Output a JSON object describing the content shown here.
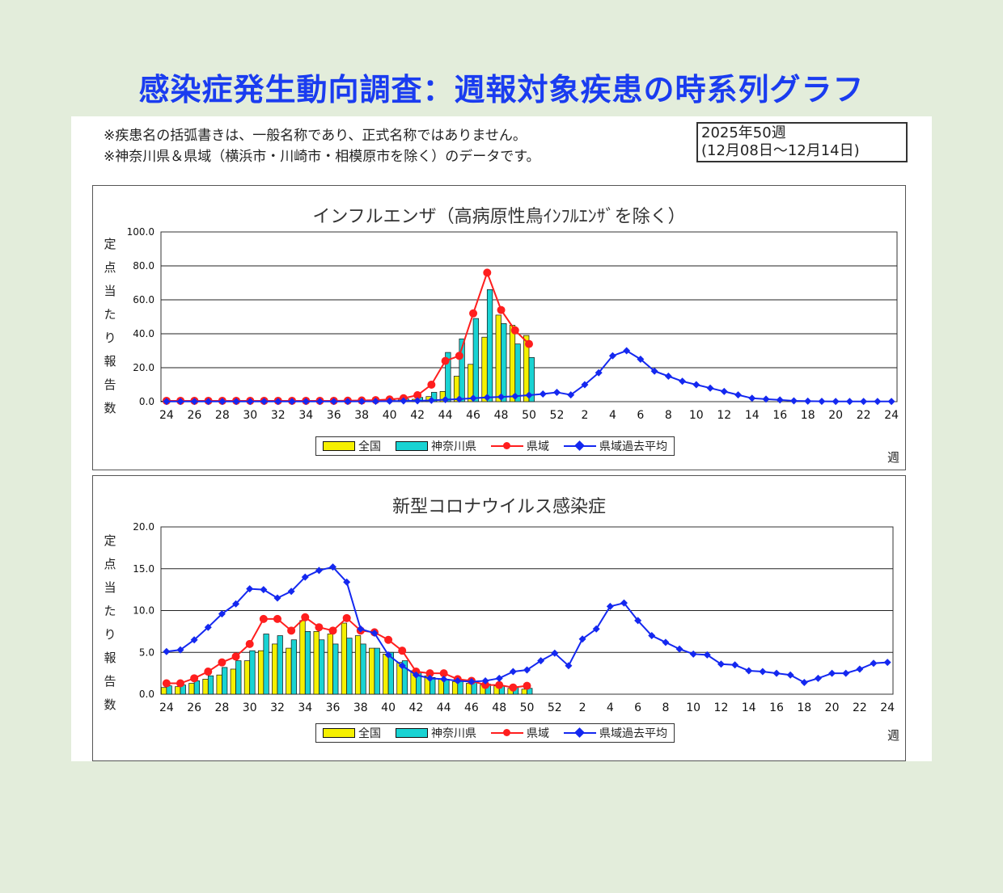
{
  "page": {
    "title": "感染症発生動向調査：週報対象疾患の時系列グラフ",
    "note1": "※疾患名の括弧書きは、一般名称であり、正式名称ではありません。",
    "note2": "※神奈川県＆県域（横浜市・川崎市・相模原市を除く）のデータです。",
    "period_line1": "2025年50週",
    "period_line2": "(12月08日～12月14日)",
    "background_color": "#e3eddb",
    "title_color": "#1a3cf0"
  },
  "legend": {
    "national": "全国",
    "kanagawa": "神奈川県",
    "prefarea": "県域",
    "pastavg": "県域過去平均"
  },
  "colors": {
    "national": "#f5f000",
    "kanagawa": "#19d3d3",
    "prefarea": "#ff1e1e",
    "pastavg": "#1428f0"
  },
  "chart_data": [
    {
      "type": "bar",
      "title": "インフルエンザ（高病原性鳥ｲﾝﾌﾙｴﾝｻﾞを除く）",
      "ylabel": "定点当たり報告数",
      "xlabel": "週",
      "ylim": [
        0,
        100
      ],
      "yticks": [
        "100.0",
        "80.0",
        "60.0",
        "40.0",
        "20.0",
        "0.0"
      ],
      "grid": true,
      "legend_position": "bottom",
      "xticks": [
        "24",
        "26",
        "28",
        "30",
        "32",
        "34",
        "36",
        "38",
        "40",
        "42",
        "44",
        "46",
        "48",
        "50",
        "52",
        "2",
        "4",
        "6",
        "8",
        "10",
        "12",
        "14",
        "16",
        "18",
        "20",
        "22",
        "24"
      ],
      "weeks": [
        "24",
        "25",
        "26",
        "27",
        "28",
        "29",
        "30",
        "31",
        "32",
        "33",
        "34",
        "35",
        "36",
        "37",
        "38",
        "39",
        "40",
        "41",
        "42",
        "43",
        "44",
        "45",
        "46",
        "47",
        "48",
        "49",
        "50",
        "51",
        "52",
        "1",
        "2",
        "3",
        "4",
        "5",
        "6",
        "7",
        "8",
        "9",
        "10",
        "11",
        "12",
        "13",
        "14",
        "15",
        "16",
        "17",
        "18",
        "19",
        "20",
        "21",
        "22",
        "23",
        "24"
      ],
      "series": [
        {
          "name": "全国",
          "kind": "bar",
          "values": [
            0.3,
            0.3,
            0.3,
            0.3,
            0.3,
            0.3,
            0.3,
            0.3,
            0.3,
            0.3,
            0.3,
            0.3,
            0.4,
            0.4,
            0.5,
            0.6,
            0.8,
            1.0,
            1.4,
            3.0,
            6.0,
            15.0,
            22.0,
            38.0,
            51.0,
            45.0,
            39.0
          ]
        },
        {
          "name": "神奈川県",
          "kind": "bar",
          "values": [
            0.5,
            0.5,
            0.5,
            0.5,
            0.5,
            0.5,
            0.5,
            0.5,
            0.5,
            0.5,
            0.5,
            0.5,
            0.6,
            0.6,
            0.7,
            0.9,
            1.2,
            1.6,
            2.5,
            5.5,
            29.0,
            37.0,
            49.0,
            66.0,
            46.0,
            34.0,
            26.0
          ]
        },
        {
          "name": "県域",
          "kind": "line",
          "values": [
            0.5,
            0.5,
            0.5,
            0.5,
            0.5,
            0.5,
            0.5,
            0.5,
            0.5,
            0.5,
            0.5,
            0.5,
            0.5,
            0.6,
            0.7,
            0.9,
            1.3,
            2.0,
            3.8,
            10.0,
            24.0,
            27.0,
            52.0,
            76.0,
            54.0,
            42.0,
            34.0
          ]
        },
        {
          "name": "県域過去平均",
          "kind": "line",
          "values": [
            0.1,
            0.1,
            0.1,
            0.1,
            0.1,
            0.1,
            0.1,
            0.1,
            0.1,
            0.1,
            0.1,
            0.1,
            0.1,
            0.1,
            0.2,
            0.2,
            0.3,
            0.4,
            0.5,
            0.8,
            1.2,
            1.5,
            2.0,
            2.5,
            2.8,
            3.2,
            3.8,
            4.5,
            5.5,
            4.0,
            10.0,
            17.0,
            27.0,
            30.0,
            25.0,
            18.0,
            15.0,
            12.0,
            10.0,
            8.0,
            6.0,
            4.0,
            2.0,
            1.5,
            1.0,
            0.5,
            0.3,
            0.2,
            0.1,
            0.1,
            0.1,
            0.1,
            0.1
          ]
        }
      ]
    },
    {
      "type": "bar",
      "title": "新型コロナウイルス感染症",
      "ylabel": "定点当たり報告数",
      "xlabel": "週",
      "ylim": [
        0,
        20
      ],
      "yticks": [
        "20.0",
        "15.0",
        "10.0",
        "5.0",
        "0.0"
      ],
      "grid": true,
      "legend_position": "bottom",
      "xticks": [
        "24",
        "26",
        "28",
        "30",
        "32",
        "34",
        "36",
        "38",
        "40",
        "42",
        "44",
        "46",
        "48",
        "50",
        "52",
        "2",
        "4",
        "6",
        "8",
        "10",
        "12",
        "14",
        "16",
        "18",
        "20",
        "22",
        "24"
      ],
      "weeks": [
        "24",
        "25",
        "26",
        "27",
        "28",
        "29",
        "30",
        "31",
        "32",
        "33",
        "34",
        "35",
        "36",
        "37",
        "38",
        "39",
        "40",
        "41",
        "42",
        "43",
        "44",
        "45",
        "46",
        "47",
        "48",
        "49",
        "50",
        "51",
        "52",
        "1",
        "2",
        "3",
        "4",
        "5",
        "6",
        "7",
        "8",
        "9",
        "10",
        "11",
        "12",
        "13",
        "14",
        "15",
        "16",
        "17",
        "18",
        "19",
        "20",
        "21",
        "22",
        "23",
        "24"
      ],
      "series": [
        {
          "name": "全国",
          "kind": "bar",
          "values": [
            0.8,
            0.9,
            1.3,
            1.8,
            2.3,
            3.0,
            4.0,
            5.2,
            6.0,
            5.5,
            8.8,
            7.5,
            7.2,
            8.5,
            7.0,
            5.5,
            4.8,
            3.8,
            2.8,
            2.2,
            1.8,
            1.5,
            1.3,
            1.1,
            1.0,
            0.7,
            0.6
          ]
        },
        {
          "name": "神奈川県",
          "kind": "bar",
          "values": [
            1.0,
            1.1,
            1.6,
            2.2,
            3.2,
            4.0,
            5.2,
            7.2,
            7.0,
            6.5,
            7.5,
            6.5,
            6.0,
            6.7,
            6.0,
            5.5,
            5.0,
            4.0,
            2.6,
            2.0,
            1.8,
            1.6,
            1.4,
            1.2,
            1.0,
            0.8,
            0.7
          ]
        },
        {
          "name": "県域",
          "kind": "line",
          "values": [
            1.3,
            1.3,
            1.9,
            2.7,
            3.8,
            4.5,
            6.0,
            9.0,
            9.0,
            7.6,
            9.2,
            8.0,
            7.6,
            9.1,
            7.6,
            7.4,
            6.5,
            5.2,
            2.7,
            2.5,
            2.5,
            1.8,
            1.6,
            1.1,
            1.1,
            0.8,
            1.0
          ]
        },
        {
          "name": "県域過去平均",
          "kind": "line",
          "values": [
            5.1,
            5.3,
            6.5,
            8.0,
            9.6,
            10.8,
            12.6,
            12.5,
            11.5,
            12.3,
            14.0,
            14.8,
            15.2,
            13.4,
            7.8,
            7.3,
            4.7,
            3.4,
            2.3,
            1.9,
            1.8,
            1.6,
            1.5,
            1.6,
            1.9,
            2.7,
            2.9,
            4.0,
            4.9,
            3.4,
            6.6,
            7.8,
            10.5,
            10.9,
            8.8,
            7.0,
            6.2,
            5.4,
            4.8,
            4.7,
            3.6,
            3.5,
            2.8,
            2.7,
            2.5,
            2.3,
            1.4,
            1.9,
            2.5,
            2.5,
            3.0,
            3.7,
            3.8
          ]
        }
      ]
    }
  ]
}
